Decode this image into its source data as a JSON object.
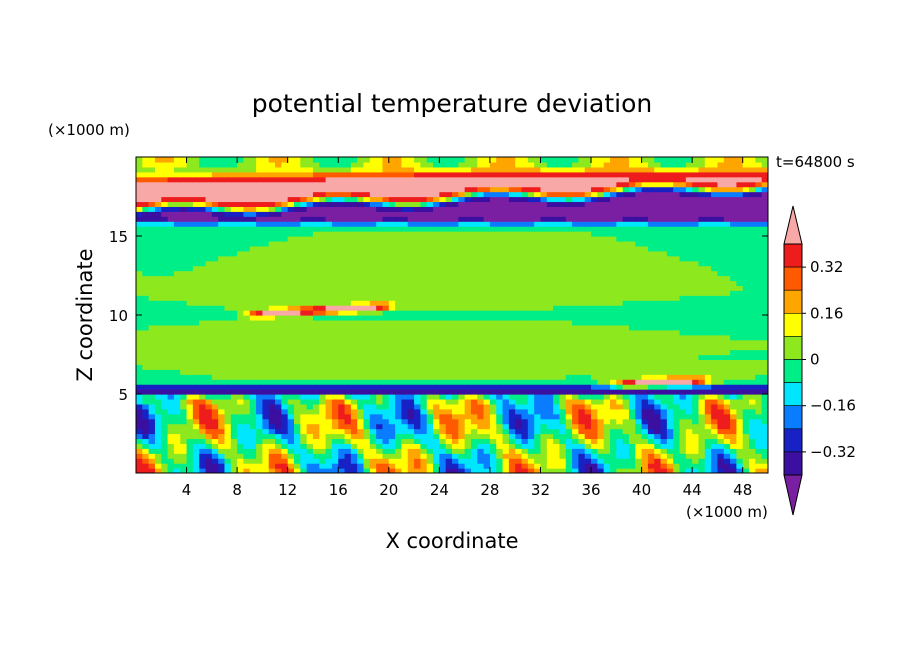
{
  "chart_data": {
    "type": "heatmap",
    "title": "potential temperature deviation",
    "xlabel": "X coordinate",
    "ylabel": "Z coordinate",
    "x_unit_label": "(×1000 m)",
    "y_unit_label": "(×1000 m)",
    "time_label": "t=64800 s",
    "xlim": [
      0,
      50
    ],
    "ylim": [
      0,
      20
    ],
    "x_ticks": [
      4,
      8,
      12,
      16,
      20,
      24,
      28,
      32,
      36,
      40,
      44,
      48
    ],
    "x_tick_labels": [
      "4",
      "8",
      "12",
      "16",
      "20",
      "24",
      "28",
      "32",
      "36",
      "40",
      "44",
      "48"
    ],
    "y_ticks": [
      5,
      10,
      15
    ],
    "y_tick_labels": [
      "5",
      "10",
      "15"
    ],
    "colorbar": {
      "levels": [
        -0.4,
        -0.32,
        -0.24,
        -0.16,
        -0.08,
        0,
        0.08,
        0.16,
        0.24,
        0.32,
        0.4
      ],
      "tick_values": [
        -0.32,
        -0.16,
        0,
        0.16,
        0.32
      ],
      "tick_labels": [
        "−0.32",
        "−0.16",
        "0",
        "0.16",
        "0.32"
      ],
      "colors": [
        "#7b1fa2",
        "#3b0fa0",
        "#1822c4",
        "#0a7cff",
        "#00e6ff",
        "#00ee88",
        "#8ee81e",
        "#ffff00",
        "#ffa500",
        "#ff5a00",
        "#ee1c1c",
        "#f9a8a8"
      ],
      "extend": "both"
    },
    "layers": [
      {
        "z_range": [
          19.3,
          20.0
        ],
        "character": "mixed green / cyan / yellow"
      },
      {
        "z_range": [
          17.8,
          19.3
        ],
        "character": "positive band",
        "value": 0.45
      },
      {
        "z_range": [
          16.2,
          17.8
        ],
        "character": "negative band",
        "value": -0.45
      },
      {
        "z_range": [
          5.5,
          15.8
        ],
        "character": "near zero",
        "value": 0.0
      },
      {
        "z_range": [
          5.0,
          5.5
        ],
        "character": "negative band",
        "value": -0.4
      },
      {
        "z_range": [
          0.0,
          5.0
        ],
        "character": "alternating updraft / downdraft plumes"
      }
    ]
  }
}
